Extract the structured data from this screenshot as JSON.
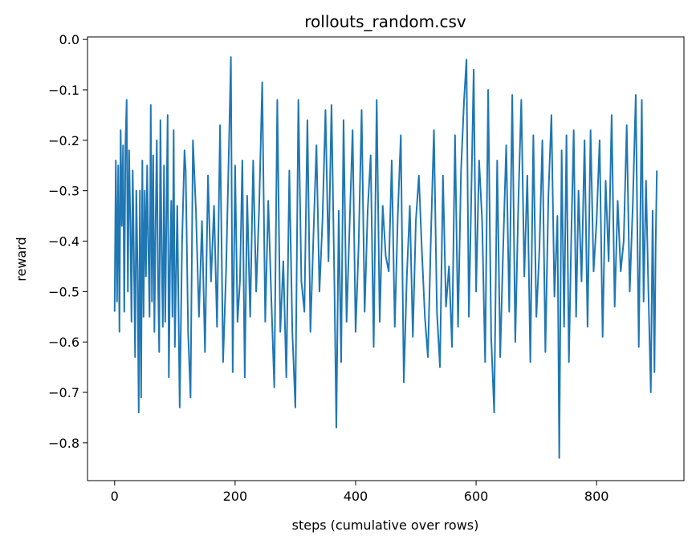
{
  "chart_data": {
    "type": "line",
    "title": "rollouts_random.csv",
    "xlabel": "steps (cumulative over rows)",
    "ylabel": "reward",
    "xlim": [
      -45,
      945
    ],
    "ylim": [
      -0.875,
      0.005
    ],
    "xticks": [
      0,
      200,
      400,
      600,
      800
    ],
    "xtick_labels": [
      "0",
      "200",
      "400",
      "600",
      "800"
    ],
    "yticks": [
      0.0,
      -0.1,
      -0.2,
      -0.3,
      -0.4,
      -0.5,
      -0.6,
      -0.7,
      -0.8
    ],
    "ytick_labels": [
      "0.0",
      "−0.1",
      "−0.2",
      "−0.3",
      "−0.4",
      "−0.5",
      "−0.6",
      "−0.7",
      "−0.8"
    ],
    "grid": false,
    "series": [
      {
        "color": "#1f77b4",
        "x_start": 0,
        "x_end": 900,
        "keypoints": [
          [
            0,
            -0.54
          ],
          [
            2,
            -0.24
          ],
          [
            4,
            -0.52
          ],
          [
            6,
            -0.25
          ],
          [
            8,
            -0.58
          ],
          [
            10,
            -0.18
          ],
          [
            12,
            -0.37
          ],
          [
            14,
            -0.21
          ],
          [
            16,
            -0.54
          ],
          [
            18,
            -0.21
          ],
          [
            20,
            -0.12
          ],
          [
            22,
            -0.5
          ],
          [
            24,
            -0.22
          ],
          [
            26,
            -0.36
          ],
          [
            28,
            -0.56
          ],
          [
            30,
            -0.26
          ],
          [
            32,
            -0.43
          ],
          [
            34,
            -0.63
          ],
          [
            36,
            -0.3
          ],
          [
            38,
            -0.45
          ],
          [
            40,
            -0.74
          ],
          [
            42,
            -0.3
          ],
          [
            44,
            -0.71
          ],
          [
            46,
            -0.24
          ],
          [
            48,
            -0.55
          ],
          [
            50,
            -0.3
          ],
          [
            52,
            -0.47
          ],
          [
            54,
            -0.25
          ],
          [
            56,
            -0.41
          ],
          [
            58,
            -0.55
          ],
          [
            60,
            -0.13
          ],
          [
            62,
            -0.52
          ],
          [
            64,
            -0.23
          ],
          [
            66,
            -0.58
          ],
          [
            68,
            -0.37
          ],
          [
            70,
            -0.2
          ],
          [
            72,
            -0.47
          ],
          [
            74,
            -0.62
          ],
          [
            76,
            -0.16
          ],
          [
            78,
            -0.42
          ],
          [
            80,
            -0.57
          ],
          [
            82,
            -0.25
          ],
          [
            84,
            -0.56
          ],
          [
            86,
            -0.35
          ],
          [
            88,
            -0.15
          ],
          [
            90,
            -0.67
          ],
          [
            92,
            -0.45
          ],
          [
            94,
            -0.32
          ],
          [
            96,
            -0.55
          ],
          [
            98,
            -0.18
          ],
          [
            100,
            -0.61
          ],
          [
            104,
            -0.33
          ],
          [
            108,
            -0.73
          ],
          [
            112,
            -0.4
          ],
          [
            116,
            -0.22
          ],
          [
            118,
            -0.26
          ],
          [
            122,
            -0.58
          ],
          [
            126,
            -0.71
          ],
          [
            130,
            -0.2
          ],
          [
            135,
            -0.34
          ],
          [
            140,
            -0.55
          ],
          [
            145,
            -0.36
          ],
          [
            150,
            -0.62
          ],
          [
            155,
            -0.27
          ],
          [
            160,
            -0.48
          ],
          [
            165,
            -0.33
          ],
          [
            170,
            -0.57
          ],
          [
            175,
            -0.17
          ],
          [
            180,
            -0.64
          ],
          [
            185,
            -0.46
          ],
          [
            190,
            -0.2
          ],
          [
            193,
            -0.035
          ],
          [
            196,
            -0.66
          ],
          [
            200,
            -0.25
          ],
          [
            204,
            -0.56
          ],
          [
            208,
            -0.48
          ],
          [
            212,
            -0.24
          ],
          [
            216,
            -0.67
          ],
          [
            220,
            -0.31
          ],
          [
            225,
            -0.55
          ],
          [
            230,
            -0.24
          ],
          [
            235,
            -0.5
          ],
          [
            240,
            -0.33
          ],
          [
            245,
            -0.085
          ],
          [
            250,
            -0.56
          ],
          [
            255,
            -0.32
          ],
          [
            260,
            -0.51
          ],
          [
            265,
            -0.69
          ],
          [
            270,
            -0.12
          ],
          [
            275,
            -0.58
          ],
          [
            280,
            -0.44
          ],
          [
            285,
            -0.67
          ],
          [
            290,
            -0.26
          ],
          [
            295,
            -0.58
          ],
          [
            300,
            -0.73
          ],
          [
            305,
            -0.12
          ],
          [
            310,
            -0.48
          ],
          [
            315,
            -0.54
          ],
          [
            320,
            -0.16
          ],
          [
            325,
            -0.58
          ],
          [
            330,
            -0.39
          ],
          [
            335,
            -0.21
          ],
          [
            340,
            -0.5
          ],
          [
            345,
            -0.36
          ],
          [
            350,
            -0.14
          ],
          [
            355,
            -0.44
          ],
          [
            360,
            -0.13
          ],
          [
            365,
            -0.5
          ],
          [
            368,
            -0.77
          ],
          [
            372,
            -0.34
          ],
          [
            376,
            -0.64
          ],
          [
            380,
            -0.16
          ],
          [
            385,
            -0.56
          ],
          [
            390,
            -0.37
          ],
          [
            395,
            -0.18
          ],
          [
            400,
            -0.58
          ],
          [
            405,
            -0.41
          ],
          [
            410,
            -0.14
          ],
          [
            415,
            -0.54
          ],
          [
            420,
            -0.34
          ],
          [
            425,
            -0.23
          ],
          [
            430,
            -0.61
          ],
          [
            435,
            -0.12
          ],
          [
            440,
            -0.56
          ],
          [
            445,
            -0.33
          ],
          [
            450,
            -0.43
          ],
          [
            455,
            -0.46
          ],
          [
            460,
            -0.24
          ],
          [
            465,
            -0.57
          ],
          [
            470,
            -0.35
          ],
          [
            475,
            -0.19
          ],
          [
            480,
            -0.68
          ],
          [
            485,
            -0.47
          ],
          [
            490,
            -0.33
          ],
          [
            495,
            -0.59
          ],
          [
            500,
            -0.36
          ],
          [
            505,
            -0.27
          ],
          [
            510,
            -0.42
          ],
          [
            515,
            -0.55
          ],
          [
            520,
            -0.63
          ],
          [
            525,
            -0.39
          ],
          [
            530,
            -0.18
          ],
          [
            535,
            -0.54
          ],
          [
            540,
            -0.65
          ],
          [
            545,
            -0.27
          ],
          [
            550,
            -0.53
          ],
          [
            555,
            -0.45
          ],
          [
            560,
            -0.61
          ],
          [
            565,
            -0.19
          ],
          [
            570,
            -0.57
          ],
          [
            575,
            -0.26
          ],
          [
            580,
            -0.12
          ],
          [
            584,
            -0.04
          ],
          [
            588,
            -0.55
          ],
          [
            592,
            -0.31
          ],
          [
            596,
            -0.06
          ],
          [
            600,
            -0.5
          ],
          [
            605,
            -0.24
          ],
          [
            610,
            -0.36
          ],
          [
            615,
            -0.64
          ],
          [
            620,
            -0.1
          ],
          [
            625,
            -0.59
          ],
          [
            630,
            -0.74
          ],
          [
            635,
            -0.24
          ],
          [
            640,
            -0.63
          ],
          [
            645,
            -0.41
          ],
          [
            650,
            -0.21
          ],
          [
            655,
            -0.54
          ],
          [
            660,
            -0.11
          ],
          [
            665,
            -0.6
          ],
          [
            670,
            -0.33
          ],
          [
            675,
            -0.12
          ],
          [
            680,
            -0.47
          ],
          [
            685,
            -0.27
          ],
          [
            690,
            -0.64
          ],
          [
            695,
            -0.19
          ],
          [
            700,
            -0.55
          ],
          [
            705,
            -0.42
          ],
          [
            710,
            -0.2
          ],
          [
            715,
            -0.62
          ],
          [
            720,
            -0.31
          ],
          [
            725,
            -0.15
          ],
          [
            730,
            -0.51
          ],
          [
            735,
            -0.35
          ],
          [
            738,
            -0.83
          ],
          [
            742,
            -0.22
          ],
          [
            746,
            -0.57
          ],
          [
            750,
            -0.19
          ],
          [
            754,
            -0.64
          ],
          [
            758,
            -0.39
          ],
          [
            762,
            -0.18
          ],
          [
            766,
            -0.55
          ],
          [
            770,
            -0.3
          ],
          [
            775,
            -0.48
          ],
          [
            780,
            -0.2
          ],
          [
            785,
            -0.57
          ],
          [
            790,
            -0.18
          ],
          [
            795,
            -0.46
          ],
          [
            800,
            -0.36
          ],
          [
            805,
            -0.2
          ],
          [
            810,
            -0.59
          ],
          [
            815,
            -0.28
          ],
          [
            820,
            -0.44
          ],
          [
            825,
            -0.15
          ],
          [
            830,
            -0.53
          ],
          [
            835,
            -0.32
          ],
          [
            840,
            -0.46
          ],
          [
            845,
            -0.4
          ],
          [
            850,
            -0.17
          ],
          [
            855,
            -0.5
          ],
          [
            860,
            -0.33
          ],
          [
            865,
            -0.11
          ],
          [
            870,
            -0.61
          ],
          [
            875,
            -0.12
          ],
          [
            878,
            -0.52
          ],
          [
            882,
            -0.28
          ],
          [
            886,
            -0.5
          ],
          [
            890,
            -0.7
          ],
          [
            893,
            -0.34
          ],
          [
            896,
            -0.66
          ],
          [
            898,
            -0.41
          ],
          [
            900,
            -0.26
          ]
        ]
      }
    ]
  }
}
